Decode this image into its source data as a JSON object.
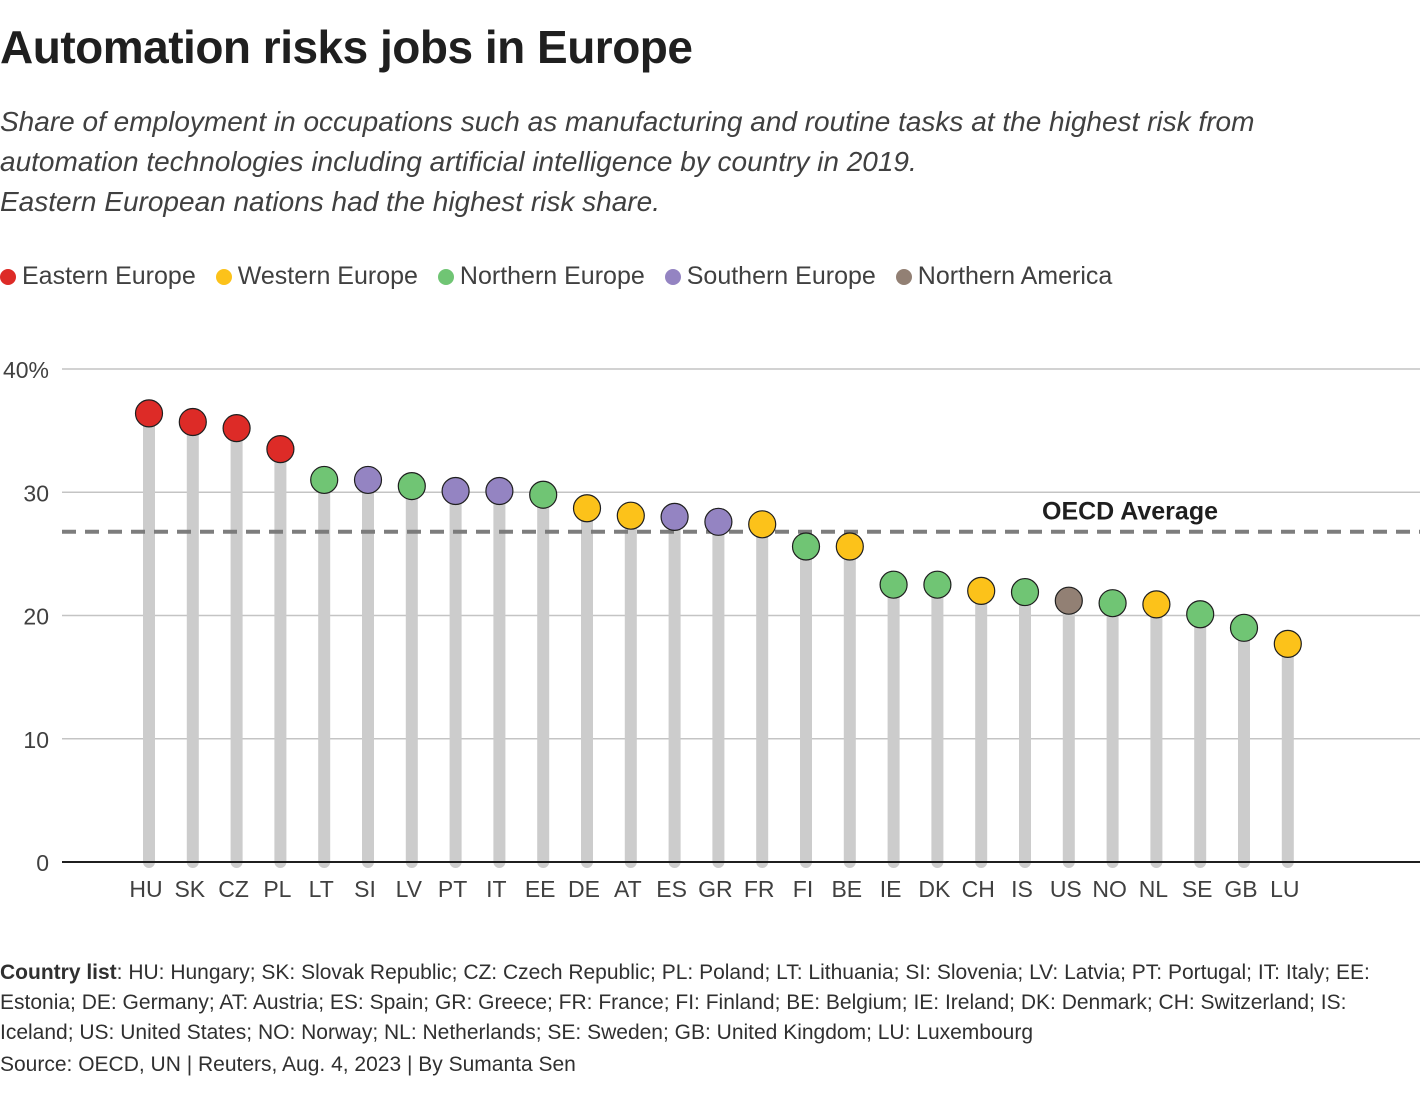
{
  "header": {
    "title": "Automation risks jobs in Europe",
    "subtitle_lines": [
      "Share of employment in occupations such as manufacturing and routine tasks at the highest risk from",
      "automation technologies including artificial intelligence by country in 2019.",
      "Eastern European nations had the highest risk share."
    ]
  },
  "legend": [
    {
      "label": "Eastern Europe",
      "color": "#dd2b27"
    },
    {
      "label": "Western Europe",
      "color": "#fcc21a"
    },
    {
      "label": "Northern Europe",
      "color": "#70c574"
    },
    {
      "label": "Southern Europe",
      "color": "#9484c2"
    },
    {
      "label": "Northern America",
      "color": "#928074"
    }
  ],
  "chart_data": {
    "type": "scatter",
    "subtype": "lollipop",
    "title": "Automation risks jobs in Europe",
    "xlabel": "",
    "ylabel": "",
    "ylim": [
      0,
      40
    ],
    "yticks": [
      0,
      10,
      20,
      30,
      40
    ],
    "ytick_labels": [
      "0",
      "10",
      "20",
      "30",
      "40%"
    ],
    "grid": true,
    "legend_position": "top-left",
    "categories": [
      "HU",
      "SK",
      "CZ",
      "PL",
      "LT",
      "SI",
      "LV",
      "PT",
      "IT",
      "EE",
      "DE",
      "AT",
      "ES",
      "GR",
      "FR",
      "FI",
      "BE",
      "IE",
      "DK",
      "CH",
      "IS",
      "US",
      "NO",
      "NL",
      "SE",
      "GB",
      "LU"
    ],
    "values": [
      36.4,
      35.7,
      35.2,
      33.5,
      31.0,
      31.0,
      30.5,
      30.1,
      30.1,
      29.8,
      28.7,
      28.1,
      28.0,
      27.6,
      27.4,
      25.6,
      25.6,
      22.5,
      22.5,
      22.0,
      21.9,
      21.2,
      21.0,
      20.9,
      20.1,
      19.0,
      17.7
    ],
    "regions": [
      "Eastern Europe",
      "Eastern Europe",
      "Eastern Europe",
      "Eastern Europe",
      "Northern Europe",
      "Southern Europe",
      "Northern Europe",
      "Southern Europe",
      "Southern Europe",
      "Northern Europe",
      "Western Europe",
      "Western Europe",
      "Southern Europe",
      "Southern Europe",
      "Western Europe",
      "Northern Europe",
      "Western Europe",
      "Northern Europe",
      "Northern Europe",
      "Western Europe",
      "Northern Europe",
      "Northern America",
      "Northern Europe",
      "Western Europe",
      "Northern Europe",
      "Northern Europe",
      "Western Europe"
    ],
    "reference_line": {
      "label": "OECD Average",
      "value": 26.8
    }
  },
  "footer": {
    "country_list_label": "Country list",
    "country_list_text": ": HU: Hungary; SK: Slovak Republic; CZ: Czech Republic; PL: Poland; LT: Lithuania; SI: Slovenia; LV: Latvia; PT: Portugal; IT: Italy; EE: Estonia; DE: Germany; AT: Austria; ES: Spain; GR: Greece; FR: France; FI: Finland; BE: Belgium; IE: Ireland; DK: Denmark; CH: Switzerland; IS: Iceland; US: United States; NO: Norway; NL: Netherlands; SE: Sweden; GB: United Kingdom; LU: Luxembourg",
    "source": "Source: OECD, UN | Reuters, Aug. 4, 2023 | By Sumanta Sen"
  }
}
